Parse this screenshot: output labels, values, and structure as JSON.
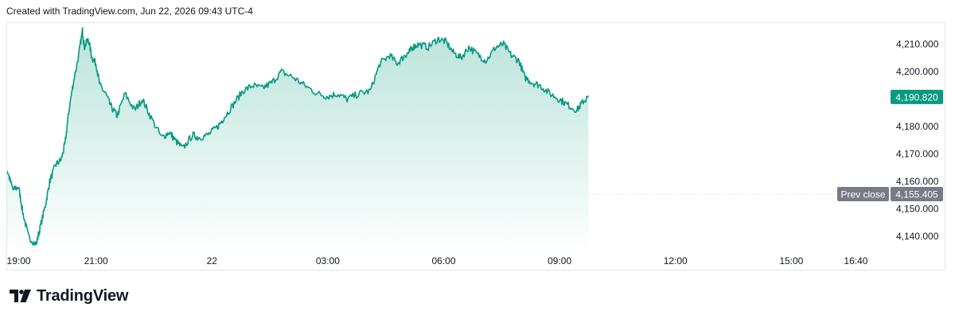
{
  "header": {
    "attribution": "Created with TradingView.com, Jun 22, 2026 09:43 UTC-4"
  },
  "brand": {
    "name": "TradingView",
    "logo_icon": "tradingview-logo-icon"
  },
  "colors": {
    "line": "#089981",
    "area_top": "#b9e3da",
    "area_bottom": "#ffffff",
    "last_price_label_bg": "#089981",
    "prev_close_label_bg": "#787b86",
    "prev_close_line": "#d1d4dc"
  },
  "chart_data": {
    "type": "area",
    "title": "",
    "xlabel": "",
    "ylabel": "",
    "ylim": [
      4136,
      4216
    ],
    "y_ticks": [
      4140,
      4150,
      4160,
      4170,
      4180,
      4190,
      4200,
      4210
    ],
    "y_tick_labels": [
      "4,140.000",
      "4,150.000",
      "4,160.000",
      "4,170.000",
      "4,180.000",
      "4,190.000",
      "4,200.000",
      "4,210.000"
    ],
    "x_axis": {
      "range_hours": [
        -5.3,
        16.95
      ],
      "ticks": [
        {
          "label": "19:00",
          "hours": -5
        },
        {
          "label": "21:00",
          "hours": -3
        },
        {
          "label": "22",
          "hours": 0
        },
        {
          "label": "03:00",
          "hours": 3
        },
        {
          "label": "06:00",
          "hours": 6
        },
        {
          "label": "09:00",
          "hours": 9
        },
        {
          "label": "12:00",
          "hours": 12
        },
        {
          "label": "15:00",
          "hours": 15
        },
        {
          "label": "16:40",
          "hours": 16.67
        }
      ]
    },
    "series": [
      {
        "values_hours": [
          -5.95,
          -5.88,
          -5.8,
          -5.7,
          -5.6,
          -5.45,
          -5.3,
          -5.15,
          -5.0,
          -4.9,
          -4.75,
          -4.55,
          -4.45,
          -4.3,
          -4.2,
          -4.05,
          -3.9,
          -3.8,
          -3.7,
          -3.6,
          -3.45,
          -3.35,
          -3.3,
          -3.2,
          -3.1,
          -3.0,
          -2.9,
          -2.75,
          -2.6,
          -2.45,
          -2.25,
          -2.0,
          -1.8,
          -1.6,
          -1.3,
          -1.1,
          -0.95,
          -0.75,
          -0.5,
          -0.35,
          -0.1,
          0.15,
          0.3,
          0.55,
          0.8,
          1.05,
          1.3,
          1.55,
          1.8,
          2.1,
          2.4,
          2.75,
          3.0,
          3.25,
          3.5,
          3.8,
          4.1,
          4.35,
          4.6,
          4.8,
          5.0,
          5.1,
          5.2,
          5.35,
          5.6,
          5.85,
          6.05,
          6.25,
          6.45,
          6.65,
          6.9,
          7.1,
          7.35,
          7.55,
          7.75,
          7.95,
          8.1,
          8.3,
          8.5,
          8.75,
          9.0,
          9.2,
          9.45,
          9.6,
          9.75
        ],
        "values": [
          4148.0,
          4156.0,
          4151.0,
          4150.0,
          4154.0,
          4158.0,
          4164.0,
          4157.0,
          4158.0,
          4149.0,
          4140.0,
          4137.0,
          4143.0,
          4152.0,
          4160.0,
          4166.0,
          4168.0,
          4174.0,
          4186.0,
          4195.0,
          4206.0,
          4215.0,
          4209.0,
          4212.0,
          4205.0,
          4203.0,
          4195.0,
          4192.0,
          4187.0,
          4184.0,
          4192.0,
          4186.0,
          4190.0,
          4184.0,
          4176.0,
          4178.0,
          4175.0,
          4172.0,
          4177.0,
          4176.0,
          4177.0,
          4180.0,
          4183.0,
          4188.0,
          4193.0,
          4195.0,
          4194.0,
          4196.0,
          4200.0,
          4198.0,
          4195.0,
          4192.0,
          4191.0,
          4192.0,
          4190.0,
          4192.0,
          4193.0,
          4203.0,
          4206.0,
          4203.0,
          4206.0,
          4207.0,
          4209.0,
          4210.0,
          4209.0,
          4212.0,
          4211.0,
          4207.0,
          4205.0,
          4209.0,
          4206.0,
          4204.0,
          4209.0,
          4210.0,
          4206.0,
          4204.0,
          4198.0,
          4196.0,
          4195.0,
          4192.0,
          4190.0,
          4188.0,
          4186.0,
          4189.0,
          4190.82
        ]
      }
    ],
    "last_price_label": "4,190.820",
    "last_price": 4190.82,
    "prev_close_label": "Prev close",
    "prev_close_value_label": "4,155.405",
    "prev_close": 4155.405,
    "grid": false,
    "legend": "none"
  }
}
